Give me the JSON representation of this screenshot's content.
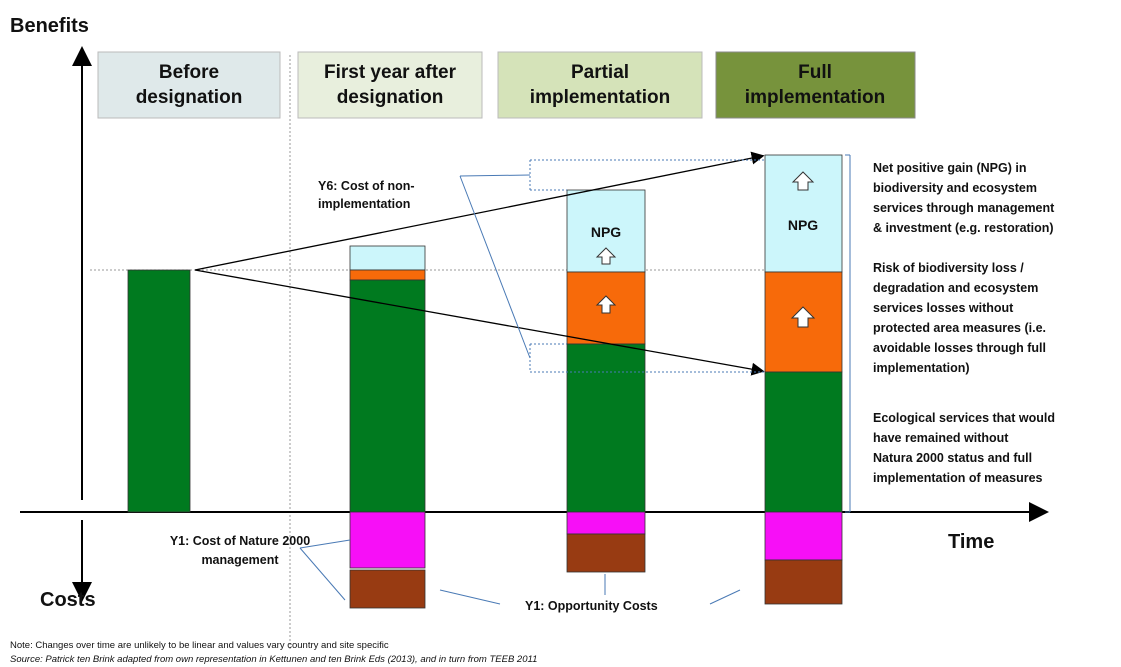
{
  "axes": {
    "benefits": "Benefits",
    "costs": "Costs",
    "time": "Time"
  },
  "phases": [
    {
      "lines": [
        "Before",
        "designation"
      ]
    },
    {
      "lines": [
        "First year after",
        "designation"
      ]
    },
    {
      "lines": [
        "Partial",
        "implementation"
      ]
    },
    {
      "lines": [
        "Full",
        "implementation"
      ]
    }
  ],
  "bar_labels": {
    "npg_partial": "NPG",
    "npg_full": "NPG"
  },
  "annotations": {
    "y6": [
      "Y6: Cost of non-",
      "implementation"
    ],
    "y1_management": [
      "Y1: Cost of Nature 2000",
      "management"
    ],
    "y1_opportunity": "Y1: Opportunity Costs",
    "npg": [
      "Net positive gain (NPG) in",
      "biodiversity and ecosystem",
      "services through management",
      "& investment (e.g. restoration)"
    ],
    "risk": [
      "Risk of biodiversity  loss /",
      "degradation and ecosystem",
      "services losses  without",
      "protected area measures  (i.e.",
      "avoidable losses through full",
      "implementation)"
    ],
    "ecological": [
      "Ecological services that would",
      "have remained without",
      "Natura 2000 status and full",
      "implementation of measures"
    ]
  },
  "notes": [
    "Note: Changes  over time are  unlikely to be linear and values vary  country and site specific",
    "Source: Patrick ten Brink adapted from  own representation in Kettunen and ten Brink Eds (2013), and in turn from TEEB 2011"
  ]
}
